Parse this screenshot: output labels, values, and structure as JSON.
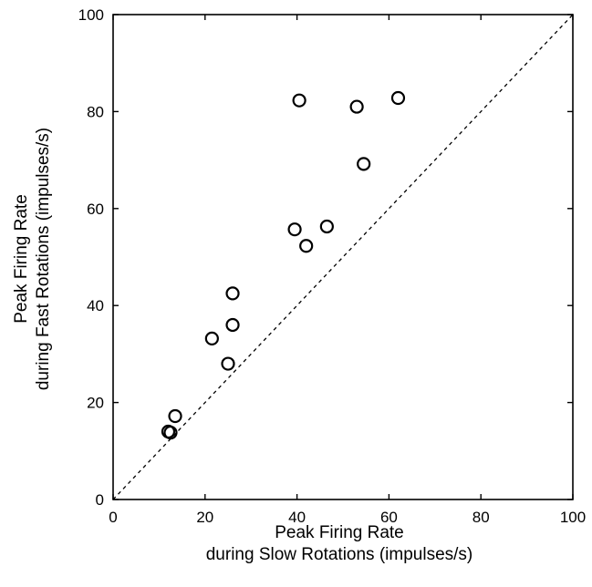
{
  "chart_data": {
    "type": "scatter",
    "xlabel": [
      "Peak Firing Rate",
      "during Slow Rotations (impulses/s)"
    ],
    "ylabel": [
      "Peak Firing Rate",
      "during Fast Rotations (impulses/s)"
    ],
    "xlim": [
      0,
      100
    ],
    "ylim": [
      0,
      100
    ],
    "xticks": [
      0,
      20,
      40,
      60,
      80,
      100
    ],
    "yticks": [
      0,
      20,
      40,
      60,
      80,
      100
    ],
    "grid": false,
    "reference_line": {
      "style": "dashed",
      "from": [
        0,
        0
      ],
      "to": [
        100,
        100
      ]
    },
    "series": [
      {
        "marker": "open-circle",
        "color": "#000000",
        "x": [
          12,
          12.5,
          13.5,
          21.5,
          25,
          26,
          26,
          39.5,
          40.5,
          42,
          46.5,
          53,
          54.5,
          62
        ],
        "y": [
          14,
          13.8,
          17.2,
          33.2,
          28,
          36,
          42.5,
          55.7,
          82.3,
          52.3,
          56.3,
          81,
          69.2,
          82.8
        ]
      }
    ]
  }
}
